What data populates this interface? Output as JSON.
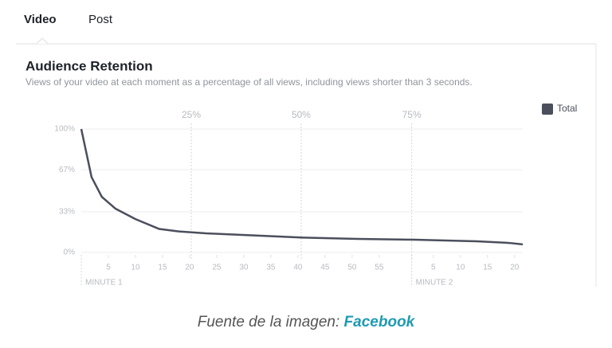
{
  "tabs": [
    "Video",
    "Post"
  ],
  "chart_data": {
    "type": "line",
    "title": "Audience Retention",
    "subtitle": "Views of your video at each moment as a percentage of all views, including views shorter than 3 seconds.",
    "x": [
      0,
      1.9,
      3.8,
      6.3,
      10,
      14.4,
      18,
      23,
      30.6,
      41,
      51,
      61.5,
      73,
      79,
      81.5
    ],
    "series": [
      {
        "name": "Total",
        "color": "#4b4f5c",
        "values": [
          100,
          61,
          45,
          35.5,
          27,
          19,
          17,
          15.5,
          14,
          12,
          11,
          10.3,
          9,
          7.7,
          6.5
        ]
      }
    ],
    "xlim": [
      0,
      81.5
    ],
    "xticks": [
      5,
      10,
      15,
      20,
      25,
      30,
      35,
      40,
      45,
      50,
      55,
      {
        "value": 65,
        "label": "5"
      },
      {
        "value": 70,
        "label": "10"
      },
      {
        "value": 75,
        "label": "15"
      },
      {
        "value": 80,
        "label": "20"
      }
    ],
    "ylim": [
      0,
      100
    ],
    "yticks": [
      {
        "value": 0,
        "label": "0%"
      },
      {
        "value": 33,
        "label": "33%"
      },
      {
        "value": 67,
        "label": "67%"
      },
      {
        "value": 100,
        "label": "100%"
      }
    ],
    "markers": [
      {
        "value": 20.3,
        "label": "25%"
      },
      {
        "value": 40.6,
        "label": "50%"
      },
      {
        "value": 61,
        "label": "75%"
      }
    ],
    "minute_labels": [
      {
        "value": 0,
        "label": "MINUTE 1"
      },
      {
        "value": 61,
        "label": "MINUTE 2"
      }
    ],
    "grid": true
  },
  "caption": {
    "text": "Fuente de la imagen:",
    "source": "Facebook"
  }
}
